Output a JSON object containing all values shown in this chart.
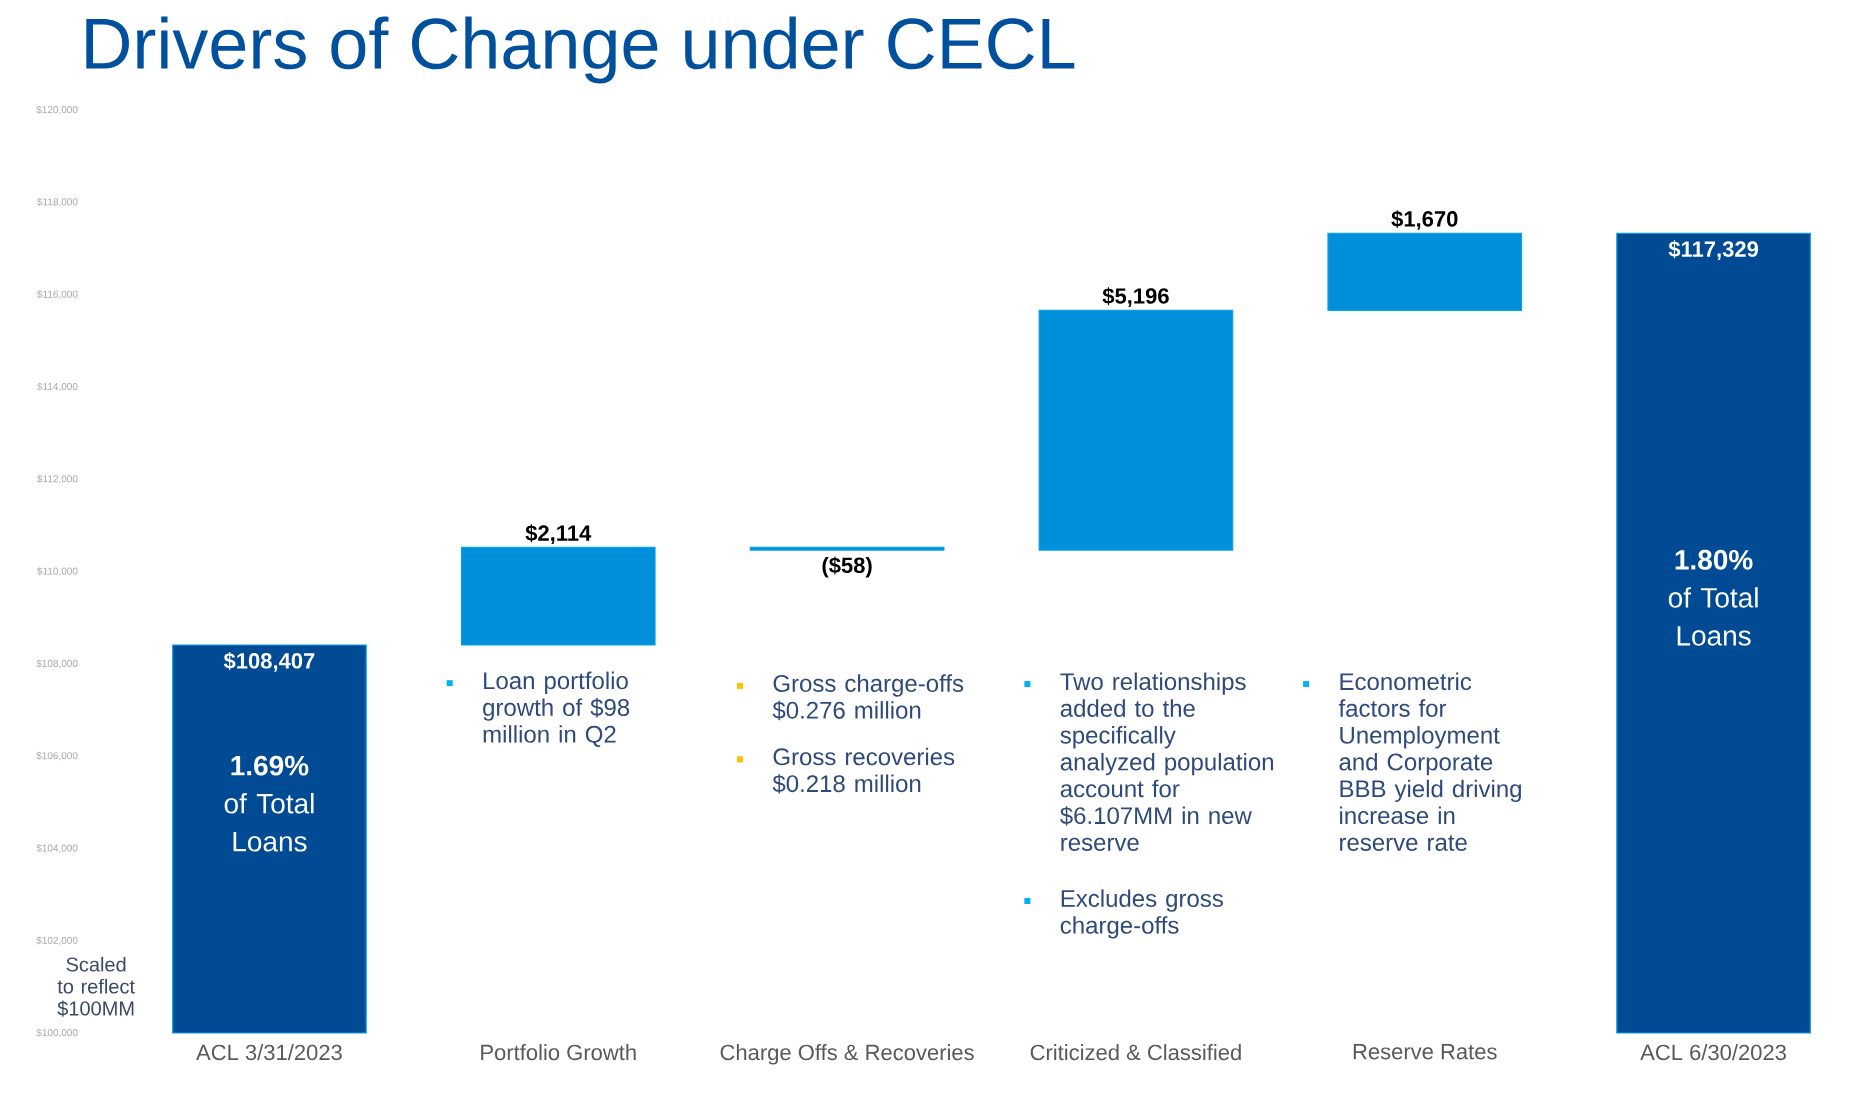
{
  "chart_data": {
    "type": "bar",
    "title": "Drivers of Change under CECL",
    "categories": [
      "ACL  3/31/2023",
      "Portfolio Growth",
      "Charge Offs & Recoveries",
      "Criticized & Classified",
      "Reserve Rates",
      "ACL  6/30/2023"
    ],
    "values": [
      8407,
      2114,
      -58,
      5196,
      1670,
      17329
    ],
    "base": [
      100000,
      108407,
      110521,
      110463,
      115659,
      100000
    ],
    "colors": [
      "#004b93",
      "#0090da",
      "#0090da",
      "#0090da",
      "#0090da",
      "#004b93"
    ],
    "value_labels": [
      "$108,407",
      "$2,114",
      "($58)",
      "$5,196",
      "$1,670",
      "$117,329"
    ],
    "ylim": [
      100000,
      120000
    ],
    "yticks": [
      {
        "value": 100000,
        "label": "$100,000"
      },
      {
        "value": 102000,
        "label": "$102,000"
      },
      {
        "value": 104000,
        "label": "$104,000"
      },
      {
        "value": 106000,
        "label": "$106,000"
      },
      {
        "value": 108000,
        "label": "$108,000"
      },
      {
        "value": 110000,
        "label": "$110,000"
      },
      {
        "value": 112000,
        "label": "$112,000"
      },
      {
        "value": 114000,
        "label": "$114,000"
      },
      {
        "value": 116000,
        "label": "$116,000"
      },
      {
        "value": 118000,
        "label": "$118,000"
      },
      {
        "value": 120000,
        "label": "$120,000"
      }
    ],
    "annotations": [
      "Scaled to reflect $100MM",
      "**1.69%** of Total Loans",
      "**1.80%** of Total Loans",
      "Loan portfolio growth of $98 million in Q2",
      "Gross charge-offs $0.276 million",
      "Gross recoveries $0.218 million",
      "Two relationships added to the specifically analyzed population account for $6.107MM in new reserve",
      "Excludes gross charge-offs",
      "Econometric factors for Unemployment and Corporate BBB yield driving increase in reserve rate"
    ]
  }
}
